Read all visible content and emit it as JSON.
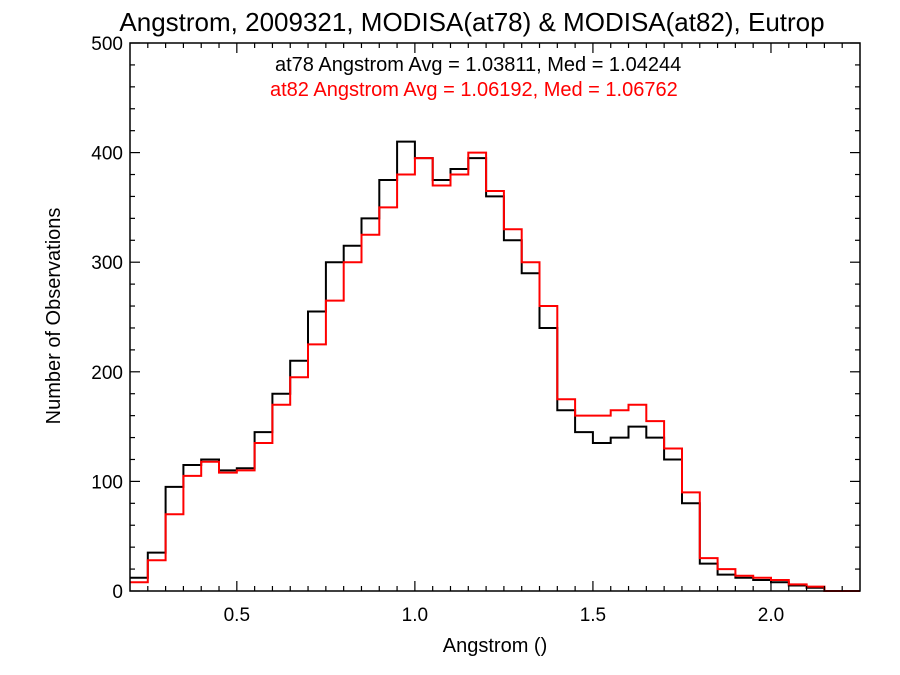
{
  "chart_data": {
    "type": "line",
    "title": "Angstrom, 2009321, MODISA(at78) & MODISA(at82), Eutrop",
    "xlabel": "Angstrom ()",
    "ylabel": "Number of Observations",
    "xlim": [
      0.2,
      2.25
    ],
    "ylim": [
      0,
      500
    ],
    "xticks": [
      "0.5",
      "1.0",
      "1.5",
      "2.0"
    ],
    "xtick_values": [
      0.5,
      1.0,
      1.5,
      2.0
    ],
    "yticks": [
      "0",
      "100",
      "200",
      "300",
      "400",
      "500"
    ],
    "ytick_values": [
      0,
      100,
      200,
      300,
      400,
      500
    ],
    "grid": false,
    "step": true,
    "annotations": [
      {
        "text": "at78 Angstrom Avg = 1.03811, Med = 1.04244",
        "color": "#000000"
      },
      {
        "text": "at82 Angstrom Avg = 1.06192, Med = 1.06762",
        "color": "#ff0000"
      }
    ],
    "x": [
      0.2,
      0.25,
      0.3,
      0.35,
      0.4,
      0.45,
      0.5,
      0.55,
      0.6,
      0.65,
      0.7,
      0.75,
      0.8,
      0.85,
      0.9,
      0.95,
      1.0,
      1.05,
      1.1,
      1.15,
      1.2,
      1.25,
      1.3,
      1.35,
      1.4,
      1.45,
      1.5,
      1.55,
      1.6,
      1.65,
      1.7,
      1.75,
      1.8,
      1.85,
      1.9,
      1.95,
      2.0,
      2.05,
      2.1,
      2.15,
      2.2,
      2.25
    ],
    "series": [
      {
        "color": "#000000",
        "values": [
          12,
          35,
          95,
          115,
          120,
          110,
          112,
          145,
          180,
          210,
          255,
          300,
          315,
          340,
          375,
          410,
          395,
          375,
          385,
          395,
          360,
          320,
          290,
          240,
          165,
          145,
          135,
          140,
          150,
          140,
          120,
          80,
          25,
          15,
          12,
          10,
          8,
          5,
          3,
          0,
          0,
          0
        ]
      },
      {
        "color": "#ff0000",
        "values": [
          8,
          28,
          70,
          105,
          118,
          108,
          110,
          135,
          170,
          195,
          225,
          265,
          300,
          325,
          350,
          380,
          395,
          370,
          380,
          400,
          365,
          330,
          300,
          260,
          175,
          160,
          160,
          165,
          170,
          155,
          130,
          90,
          30,
          20,
          14,
          12,
          10,
          6,
          4,
          0,
          0,
          0
        ]
      }
    ]
  }
}
